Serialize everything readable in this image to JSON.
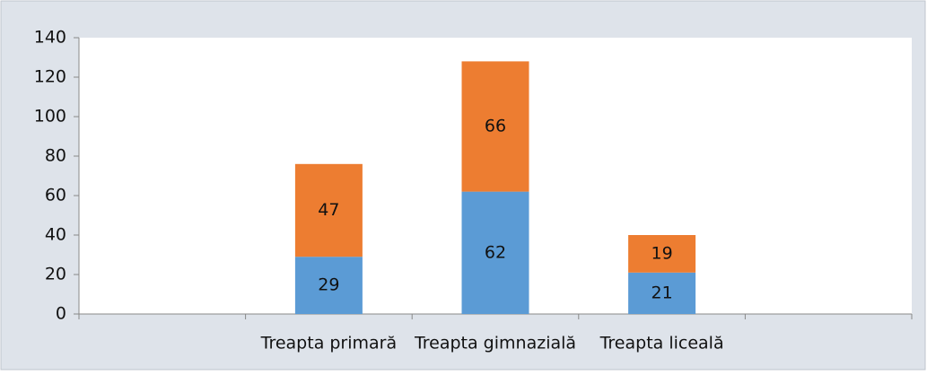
{
  "chart_data": {
    "type": "stacked_bar",
    "categories": [
      null,
      "Treapta primară",
      "Treapta gimnazială",
      "Treapta liceală",
      null
    ],
    "series": [
      {
        "color": "#5b9bd5",
        "values": [
          null,
          29,
          62,
          21,
          null
        ]
      },
      {
        "color": "#ed7d31",
        "values": [
          null,
          47,
          66,
          19,
          null
        ]
      }
    ],
    "ylim": [
      0,
      140
    ],
    "yticks": [
      0,
      20,
      40,
      60,
      80,
      100,
      120,
      140
    ],
    "grid": false
  }
}
